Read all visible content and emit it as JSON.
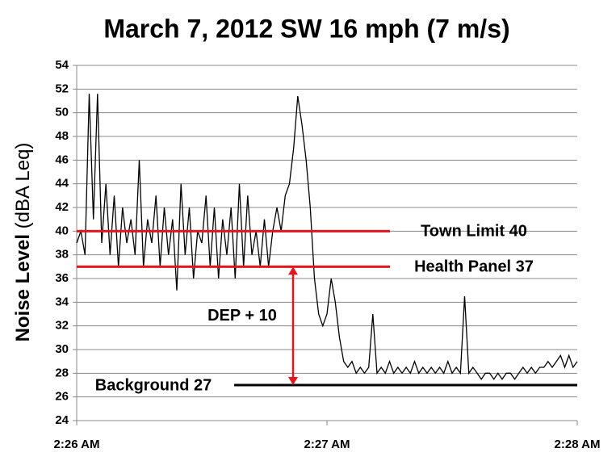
{
  "chart_data": {
    "type": "line",
    "title": "March 7, 2012 SW 16 mph (7 m/s)",
    "ylabel": "Noise Level",
    "ylabel_unit": "(dBA Leq)",
    "color": "#000000",
    "x": [
      0,
      1,
      2,
      3,
      4,
      5,
      6,
      7,
      8,
      9,
      10,
      11,
      12,
      13,
      14,
      15,
      16,
      17,
      18,
      19,
      20,
      21,
      22,
      23,
      24,
      25,
      26,
      27,
      28,
      29,
      30,
      31,
      32,
      33,
      34,
      35,
      36,
      37,
      38,
      39,
      40,
      41,
      42,
      43,
      44,
      45,
      46,
      47,
      48,
      49,
      50,
      51,
      52,
      53,
      54,
      55,
      56,
      57,
      58,
      59,
      60,
      61,
      62,
      63,
      64,
      65,
      66,
      67,
      68,
      69,
      70,
      71,
      72,
      73,
      74,
      75,
      76,
      77,
      78,
      79,
      80,
      81,
      82,
      83,
      84,
      85,
      86,
      87,
      88,
      89,
      90,
      91,
      92,
      93,
      94,
      95,
      96,
      97,
      98,
      99,
      100,
      101,
      102,
      103,
      104,
      105,
      106,
      107,
      108,
      109,
      110,
      111,
      112,
      113,
      114,
      115,
      116,
      117,
      118,
      119,
      120
    ],
    "values": [
      39,
      40,
      38,
      51.6,
      41,
      51.6,
      39,
      44,
      38,
      43,
      37,
      42,
      39,
      41,
      38,
      46,
      37,
      41,
      39,
      43,
      37,
      42,
      38,
      41,
      35,
      44,
      38,
      42,
      36,
      40,
      39,
      43,
      37,
      42,
      36,
      41,
      38,
      42,
      36,
      44,
      37,
      43,
      38,
      40,
      37,
      41,
      37,
      40,
      42,
      40,
      43,
      44,
      47,
      51.4,
      49,
      46,
      42,
      36,
      33,
      32,
      33,
      36,
      34,
      31,
      29,
      28.5,
      29,
      28,
      28.5,
      28,
      28.5,
      33,
      28,
      28.5,
      28,
      29,
      28,
      28.5,
      28,
      28.5,
      28,
      29,
      28,
      28.5,
      28,
      28.5,
      28,
      28.5,
      28,
      29,
      28,
      28.5,
      28,
      34.5,
      28,
      28.5,
      28,
      27.5,
      28,
      28,
      27.5,
      28,
      27.5,
      28,
      28,
      27.5,
      28,
      28.5,
      28,
      28.5,
      28,
      28.5,
      28.5,
      29,
      28.5,
      29,
      29.5,
      28.5,
      29.5,
      28.5,
      29
    ],
    "xlim": [
      0,
      120
    ],
    "xticks": [
      {
        "value": 0,
        "label": "2:26 AM"
      },
      {
        "value": 60,
        "label": "2:27 AM"
      },
      {
        "value": 120,
        "label": "2:28 AM"
      }
    ],
    "ylim": [
      24,
      54
    ],
    "yticks": [
      24,
      26,
      28,
      30,
      32,
      34,
      36,
      38,
      40,
      42,
      44,
      46,
      48,
      50,
      52,
      54
    ],
    "grid": true,
    "reference_lines": [
      {
        "label": "Town Limit 40",
        "value": 40,
        "color": "#e8141b"
      },
      {
        "label": "Health Panel 37",
        "value": 37,
        "color": "#e8141b"
      },
      {
        "label": "Background 27",
        "value": 27,
        "color": "#000000"
      }
    ],
    "annotations": [
      {
        "text": "DEP + 10",
        "from": 37,
        "to": 27,
        "color": "#e8141b"
      }
    ]
  }
}
